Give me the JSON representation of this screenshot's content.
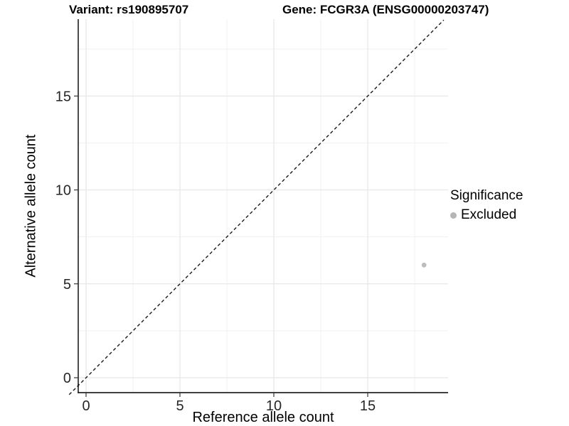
{
  "chart_data": {
    "type": "scatter",
    "title_left": "Variant: rs190895707",
    "title_right": "Gene: FCGR3A (ENSG00000203747)",
    "xlabel": "Reference allele count",
    "ylabel": "Alternative allele count",
    "xlim": [
      -0.4,
      19.3
    ],
    "ylim": [
      -0.8,
      19.1
    ],
    "x_ticks": [
      0,
      5,
      10,
      15
    ],
    "y_ticks": [
      0,
      5,
      10,
      15
    ],
    "minor_ticks": [
      2.5,
      7.5,
      12.5,
      17.5
    ],
    "grid": true,
    "abline": {
      "slope": 1,
      "intercept": 0,
      "style": "dashed",
      "color": "#1a1a1a"
    },
    "series": [
      {
        "name": "Excluded",
        "color": "#bdbdbd",
        "points": [
          {
            "x": 18,
            "y": 6
          }
        ]
      }
    ],
    "legend": {
      "title": "Significance",
      "position": "right",
      "items": [
        {
          "label": "Excluded",
          "color": "#b5b5b5"
        }
      ]
    },
    "colors": {
      "grid_major": "#e7e7e7",
      "grid_minor": "#f0f0f0",
      "axis_line": "#000000",
      "tick_text": "#262626",
      "point": "#bdbdbd"
    }
  }
}
